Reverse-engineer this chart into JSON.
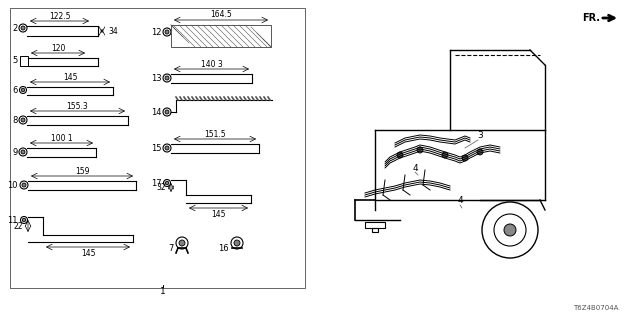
{
  "bg_color": "#ffffff",
  "line_color": "#000000",
  "gray_color": "#888888",
  "light_gray": "#cccccc",
  "fig_width": 6.4,
  "fig_height": 3.2,
  "dpi": 100,
  "title": "",
  "diagram_code": "T6Z4B0704A",
  "fr_label": "FR.",
  "part_number": "1",
  "parts": {
    "2": {
      "label": "2",
      "dim1": "122.5",
      "dim2": "34"
    },
    "5": {
      "label": "5",
      "dim1": "120"
    },
    "6": {
      "label": "6",
      "dim1": "145"
    },
    "8": {
      "label": "8",
      "dim1": "155.3"
    },
    "9": {
      "label": "9",
      "dim1": "100 1"
    },
    "10": {
      "label": "10",
      "dim1": "159"
    },
    "11": {
      "label": "11",
      "dim1": "22",
      "dim2": "145"
    },
    "12": {
      "label": "12",
      "dim1": "164.5"
    },
    "13": {
      "label": "13",
      "dim1": "140 3"
    },
    "14": {
      "label": "14"
    },
    "15": {
      "label": "15",
      "dim1": "151.5"
    },
    "17": {
      "label": "17",
      "dim1": "32",
      "dim2": "145"
    },
    "7": {
      "label": "7"
    },
    "16": {
      "label": "16"
    },
    "3": {
      "label": "3"
    },
    "4": {
      "label": "4"
    }
  }
}
